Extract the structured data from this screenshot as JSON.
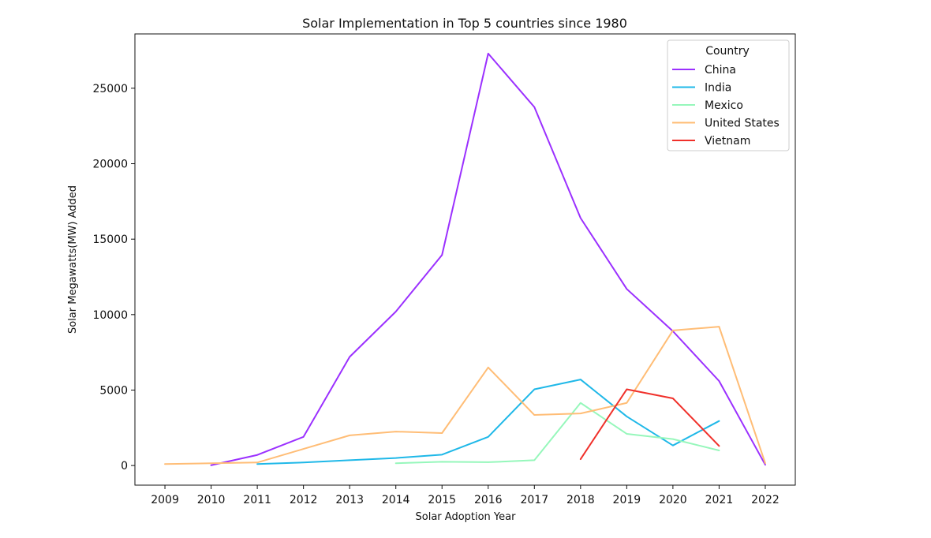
{
  "chart_data": {
    "type": "line",
    "title": "Solar Implementation in Top 5 countries since 1980",
    "xlabel": "Solar Adoption Year",
    "ylabel": "Solar Megawatts(MW) Added",
    "x_ticks": [
      2009,
      2010,
      2011,
      2012,
      2013,
      2014,
      2015,
      2016,
      2017,
      2018,
      2019,
      2020,
      2021,
      2022
    ],
    "y_ticks": [
      0,
      5000,
      10000,
      15000,
      20000,
      25000
    ],
    "x_range": [
      2008.35,
      2022.65
    ],
    "y_range": [
      -1300,
      28600
    ],
    "grid": false,
    "legend": {
      "title": "Country",
      "position": "top-right"
    },
    "series": [
      {
        "name": "China",
        "color": "#9b30ff",
        "points": [
          [
            2010,
            20
          ],
          [
            2011,
            700
          ],
          [
            2012,
            1900
          ],
          [
            2013,
            7200
          ],
          [
            2014,
            10200
          ],
          [
            2015,
            13950
          ],
          [
            2016,
            27300
          ],
          [
            2017,
            23750
          ],
          [
            2018,
            16400
          ],
          [
            2019,
            11700
          ],
          [
            2020,
            8900
          ],
          [
            2021,
            5600
          ],
          [
            2022,
            50
          ]
        ]
      },
      {
        "name": "India",
        "color": "#1fb8e8",
        "points": [
          [
            2011,
            100
          ],
          [
            2012,
            200
          ],
          [
            2013,
            350
          ],
          [
            2014,
            500
          ],
          [
            2015,
            720
          ],
          [
            2016,
            1900
          ],
          [
            2017,
            5050
          ],
          [
            2018,
            5700
          ],
          [
            2019,
            3250
          ],
          [
            2020,
            1330
          ],
          [
            2021,
            2950
          ]
        ]
      },
      {
        "name": "Mexico",
        "color": "#96f7bb",
        "points": [
          [
            2014,
            150
          ],
          [
            2015,
            250
          ],
          [
            2016,
            220
          ],
          [
            2017,
            350
          ],
          [
            2018,
            4150
          ],
          [
            2019,
            2100
          ],
          [
            2020,
            1750
          ],
          [
            2021,
            1000
          ]
        ]
      },
      {
        "name": "United States",
        "color": "#ffbd76",
        "points": [
          [
            2009,
            100
          ],
          [
            2010,
            150
          ],
          [
            2011,
            200
          ],
          [
            2012,
            1100
          ],
          [
            2013,
            2000
          ],
          [
            2014,
            2250
          ],
          [
            2015,
            2150
          ],
          [
            2016,
            6500
          ],
          [
            2017,
            3350
          ],
          [
            2018,
            3450
          ],
          [
            2019,
            4150
          ],
          [
            2020,
            8950
          ],
          [
            2021,
            9200
          ],
          [
            2022,
            150
          ]
        ]
      },
      {
        "name": "Vietnam",
        "color": "#f0302a",
        "points": [
          [
            2018,
            420
          ],
          [
            2019,
            5050
          ],
          [
            2020,
            4450
          ],
          [
            2021,
            1300
          ]
        ]
      }
    ]
  }
}
